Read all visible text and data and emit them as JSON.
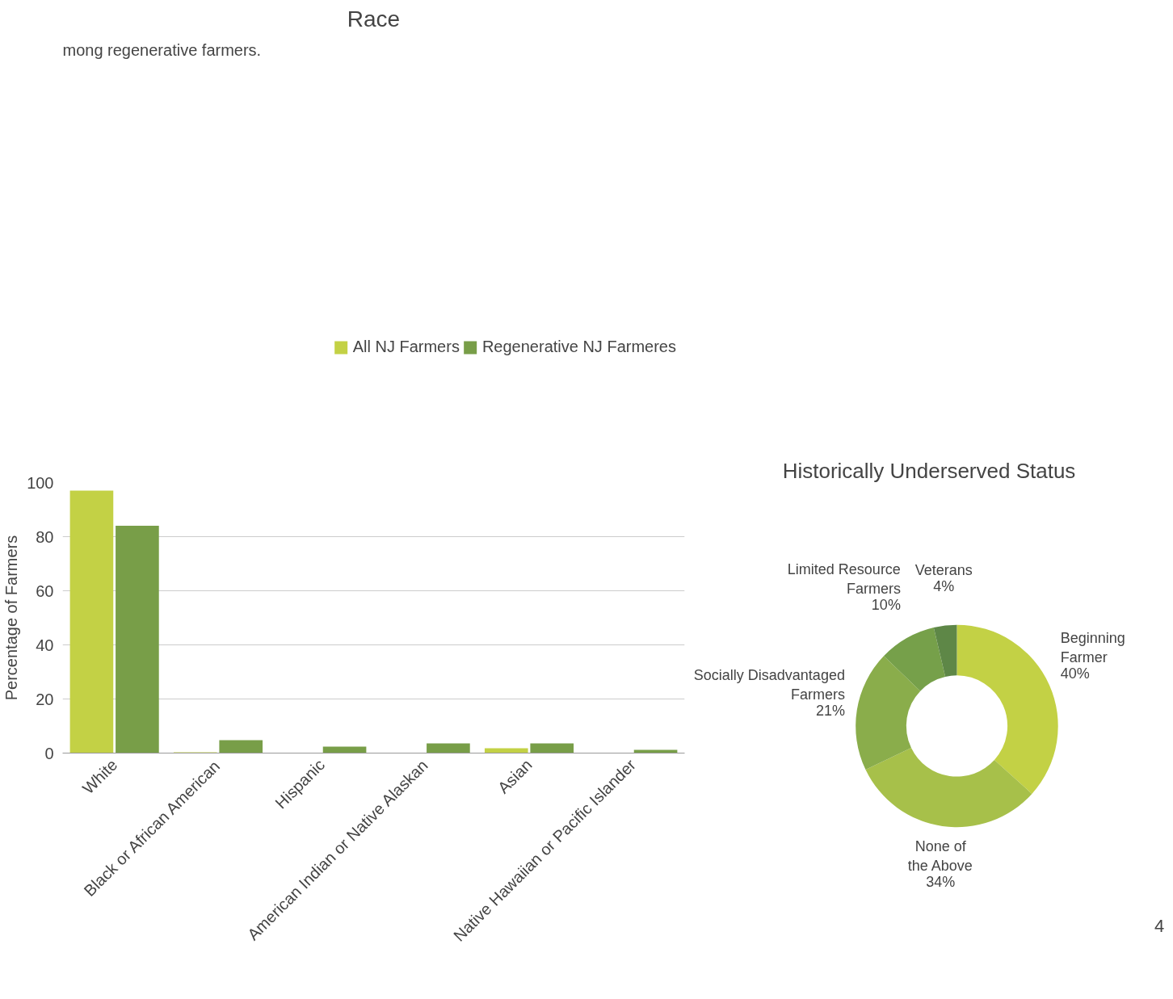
{
  "chart_data": [
    {
      "type": "bar",
      "title": "Race",
      "ylabel": "Percentage of Farmers",
      "annotations": [
        "mong regenerative farmers."
      ],
      "categories": [
        "White",
        "Black or African American",
        "Hispanic",
        "American Indian or Native Alaskan",
        "Asian",
        "Native Hawaiian or Pacific Islander"
      ],
      "series": [
        {
          "name": "All NJ Farmers",
          "color": "#c3d145",
          "values": [
            97,
            0.3,
            0,
            0,
            1.8,
            null
          ]
        },
        {
          "name": "Regenerative NJ Farmeres",
          "color": "#789e48",
          "values": [
            84,
            4.8,
            2.4,
            3.6,
            3.6,
            1.2
          ]
        }
      ],
      "ylim": [
        0,
        100
      ],
      "yticks": [
        0,
        20,
        40,
        60,
        80,
        100
      ],
      "grid": "y",
      "legend": "top"
    },
    {
      "type": "donut",
      "title": "Historically Underserved Status",
      "annotations": [
        "4"
      ],
      "categories": [
        "Beginning Farmer",
        "None of the Above",
        "Socially Disadvantaged Farmers",
        "Limited Resource Farmers",
        "Veterans"
      ],
      "values": [
        40,
        34,
        21,
        10,
        4
      ],
      "value_labels": [
        "40%",
        "34%",
        "21%",
        "10%",
        "4%"
      ],
      "colors": [
        "#c3d145",
        "#a7c04a",
        "#8aad4b",
        "#76a04a",
        "#5e8747"
      ]
    }
  ]
}
